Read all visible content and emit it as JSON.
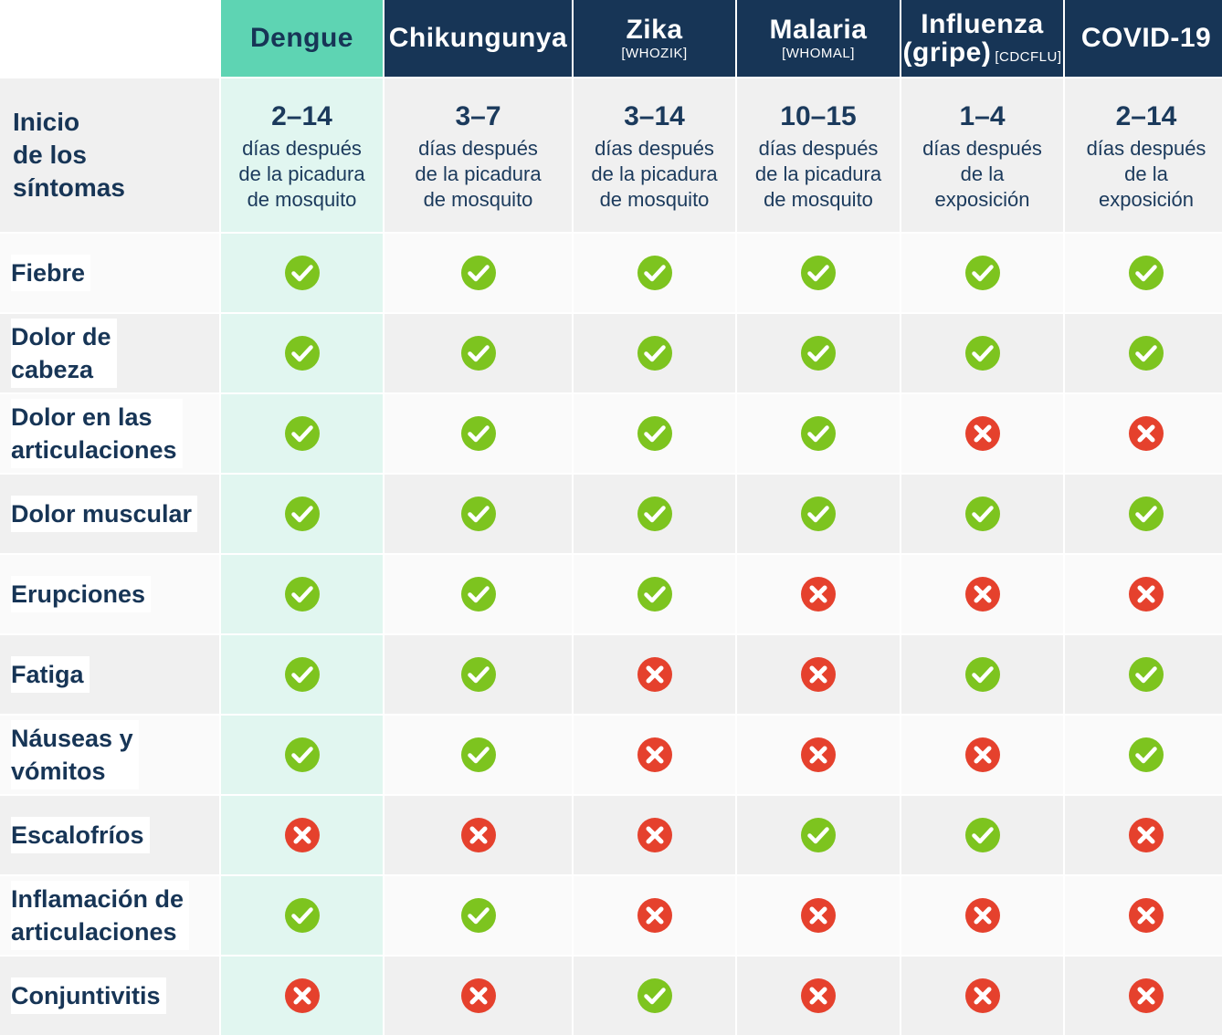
{
  "columns": [
    {
      "name": "Dengue",
      "ref": ""
    },
    {
      "name": "Chikungunya",
      "ref": ""
    },
    {
      "name": "Zika",
      "ref": "[WHOZIK]"
    },
    {
      "name": "Malaria",
      "ref": "[WHOMAL]"
    },
    {
      "name": "Influenza",
      "name2": "(gripe)",
      "ref": "[CDCFLU]"
    },
    {
      "name": "COVID-19",
      "ref": ""
    }
  ],
  "onset": {
    "label": [
      "Inicio",
      "de los",
      "síntomas"
    ],
    "values": [
      {
        "range": "2–14",
        "lines": [
          "días después",
          "de la picadura",
          "de mosquito"
        ]
      },
      {
        "range": "3–7",
        "lines": [
          "días después",
          "de la picadura",
          "de mosquito"
        ]
      },
      {
        "range": "3–14",
        "lines": [
          "días después",
          "de la picadura",
          "de mosquito"
        ]
      },
      {
        "range": "10–15",
        "lines": [
          "días después",
          "de la picadura",
          "de mosquito"
        ]
      },
      {
        "range": "1–4",
        "lines": [
          "días después",
          "de la",
          "exposición"
        ]
      },
      {
        "range": "2–14",
        "lines": [
          "días después",
          "de la",
          "exposición"
        ]
      }
    ]
  },
  "rows": [
    {
      "label": [
        "Fiebre"
      ],
      "values": [
        true,
        true,
        true,
        true,
        true,
        true
      ]
    },
    {
      "label": [
        "Dolor de",
        "cabeza"
      ],
      "values": [
        true,
        true,
        true,
        true,
        true,
        true
      ]
    },
    {
      "label": [
        "Dolor en las",
        "articulaciones"
      ],
      "values": [
        true,
        true,
        true,
        true,
        false,
        false
      ]
    },
    {
      "label": [
        "Dolor muscular"
      ],
      "values": [
        true,
        true,
        true,
        true,
        true,
        true
      ]
    },
    {
      "label": [
        "Erupciones"
      ],
      "values": [
        true,
        true,
        true,
        false,
        false,
        false
      ]
    },
    {
      "label": [
        "Fatiga"
      ],
      "values": [
        true,
        true,
        false,
        false,
        true,
        true
      ]
    },
    {
      "label": [
        "Náuseas y",
        "vómitos"
      ],
      "values": [
        true,
        true,
        false,
        false,
        false,
        true
      ]
    },
    {
      "label": [
        "Escalofríos"
      ],
      "values": [
        false,
        false,
        false,
        true,
        true,
        false
      ]
    },
    {
      "label": [
        "Inflamación de",
        "articulaciones"
      ],
      "values": [
        true,
        true,
        false,
        false,
        false,
        false
      ]
    },
    {
      "label": [
        "Conjuntivitis"
      ],
      "values": [
        false,
        false,
        true,
        false,
        false,
        false
      ]
    }
  ],
  "icons": {
    "yes": "check-circle-icon",
    "no": "x-circle-icon"
  },
  "colors": {
    "header_bg": "#173556",
    "highlight_header": "#5ed4b3",
    "highlight_col": "#e1f6f0",
    "yes": "#7dc41f",
    "no": "#e5412d"
  }
}
